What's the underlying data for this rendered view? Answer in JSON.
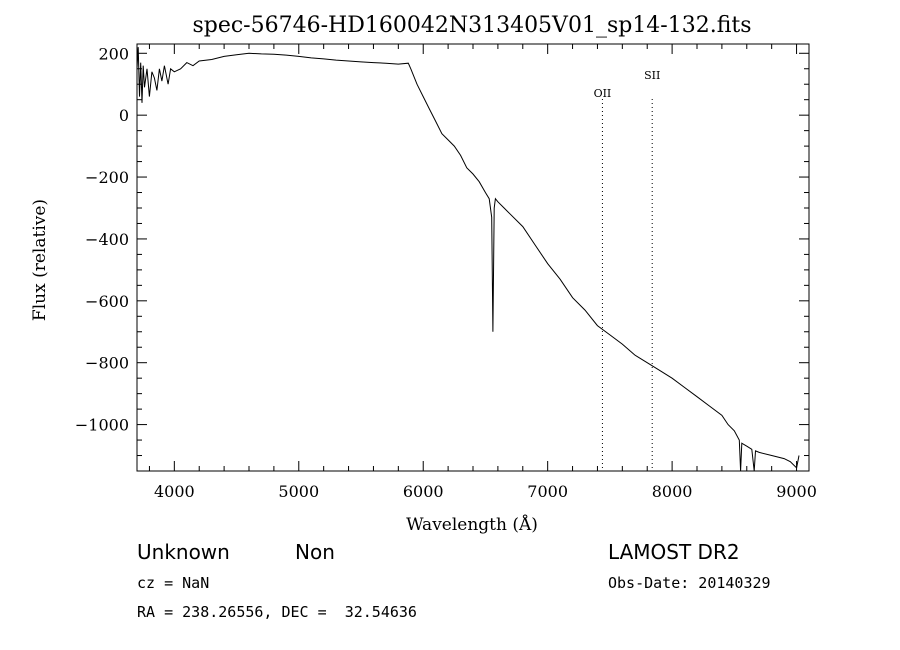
{
  "chart_data": {
    "type": "line",
    "title": "spec-56746-HD160042N313405V01_sp14-132.fits",
    "xlabel": "Wavelength (Å)",
    "ylabel": "Flux (relative)",
    "xlim": [
      3700,
      9100
    ],
    "ylim": [
      -1150,
      230
    ],
    "xticks": [
      4000,
      5000,
      6000,
      7000,
      8000,
      9000
    ],
    "yticks": [
      200,
      0,
      -200,
      -400,
      -600,
      -800,
      -1000
    ],
    "series": [
      {
        "color": "#000000",
        "points": [
          [
            3700,
            150
          ],
          [
            3710,
            220
          ],
          [
            3720,
            60
          ],
          [
            3730,
            170
          ],
          [
            3740,
            40
          ],
          [
            3750,
            160
          ],
          [
            3760,
            90
          ],
          [
            3780,
            150
          ],
          [
            3800,
            60
          ],
          [
            3820,
            140
          ],
          [
            3840,
            120
          ],
          [
            3860,
            80
          ],
          [
            3880,
            150
          ],
          [
            3900,
            110
          ],
          [
            3920,
            160
          ],
          [
            3950,
            100
          ],
          [
            3970,
            150
          ],
          [
            4000,
            140
          ],
          [
            4050,
            150
          ],
          [
            4100,
            170
          ],
          [
            4150,
            160
          ],
          [
            4200,
            175
          ],
          [
            4300,
            180
          ],
          [
            4400,
            190
          ],
          [
            4500,
            195
          ],
          [
            4600,
            200
          ],
          [
            4700,
            198
          ],
          [
            4800,
            197
          ],
          [
            4900,
            194
          ],
          [
            5000,
            190
          ],
          [
            5100,
            185
          ],
          [
            5200,
            182
          ],
          [
            5300,
            178
          ],
          [
            5400,
            175
          ],
          [
            5500,
            172
          ],
          [
            5600,
            170
          ],
          [
            5700,
            168
          ],
          [
            5800,
            165
          ],
          [
            5880,
            168
          ],
          [
            5900,
            150
          ],
          [
            5950,
            100
          ],
          [
            6000,
            60
          ],
          [
            6050,
            20
          ],
          [
            6100,
            -20
          ],
          [
            6150,
            -60
          ],
          [
            6200,
            -80
          ],
          [
            6250,
            -100
          ],
          [
            6300,
            -130
          ],
          [
            6350,
            -170
          ],
          [
            6400,
            -190
          ],
          [
            6450,
            -215
          ],
          [
            6500,
            -250
          ],
          [
            6530,
            -270
          ],
          [
            6550,
            -330
          ],
          [
            6560,
            -700
          ],
          [
            6570,
            -300
          ],
          [
            6580,
            -270
          ],
          [
            6600,
            -280
          ],
          [
            6650,
            -300
          ],
          [
            6700,
            -320
          ],
          [
            6800,
            -360
          ],
          [
            6900,
            -420
          ],
          [
            7000,
            -480
          ],
          [
            7100,
            -530
          ],
          [
            7200,
            -590
          ],
          [
            7300,
            -630
          ],
          [
            7400,
            -680
          ],
          [
            7500,
            -710
          ],
          [
            7600,
            -740
          ],
          [
            7700,
            -775
          ],
          [
            7800,
            -800
          ],
          [
            7900,
            -825
          ],
          [
            8000,
            -850
          ],
          [
            8100,
            -880
          ],
          [
            8200,
            -910
          ],
          [
            8300,
            -940
          ],
          [
            8400,
            -970
          ],
          [
            8450,
            -1000
          ],
          [
            8500,
            -1020
          ],
          [
            8540,
            -1050
          ],
          [
            8550,
            -1150
          ],
          [
            8560,
            -1060
          ],
          [
            8600,
            -1070
          ],
          [
            8640,
            -1080
          ],
          [
            8660,
            -1150
          ],
          [
            8670,
            -1085
          ],
          [
            8700,
            -1090
          ],
          [
            8800,
            -1100
          ],
          [
            8900,
            -1110
          ],
          [
            8950,
            -1120
          ],
          [
            9000,
            -1140
          ],
          [
            9020,
            -1100
          ]
        ]
      }
    ],
    "annotations": [
      {
        "label": "OII",
        "x": 7440
      },
      {
        "label": "SII",
        "x": 7840
      }
    ],
    "grid": false,
    "legend": "none"
  },
  "footer": {
    "object_class": "Unknown",
    "subclass": "Non",
    "survey": "LAMOST DR2",
    "cz": "cz = NaN",
    "obs_date": "Obs-Date: 20140329",
    "coords": "RA = 238.26556, DEC =  32.54636"
  }
}
